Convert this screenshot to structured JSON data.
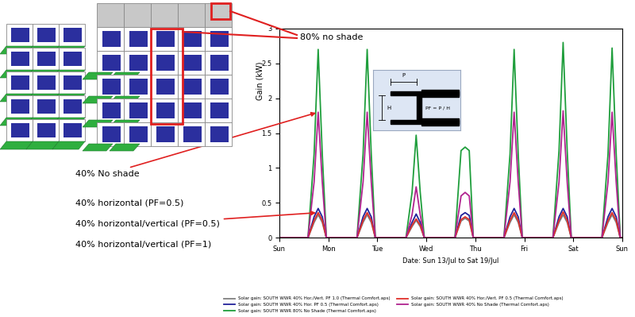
{
  "chart_data": {
    "type": "line",
    "x_label": "Date: Sun 13/Jul to Sat 19/Jul",
    "y_label": "Gain (kW)",
    "x": [
      0,
      14,
      17,
      19,
      21,
      23,
      38,
      41,
      43,
      45,
      47,
      62,
      65,
      67,
      69,
      71,
      86,
      89,
      91,
      93,
      95,
      110,
      113,
      115,
      117,
      119,
      134,
      137,
      139,
      141,
      143,
      158,
      161,
      163,
      165,
      167,
      168
    ],
    "xlim": [
      0,
      168
    ],
    "xticks": [
      {
        "value": 0,
        "label": "Sun"
      },
      {
        "value": 24,
        "label": "Mon"
      },
      {
        "value": 48,
        "label": "Tue"
      },
      {
        "value": 72,
        "label": "Wed"
      },
      {
        "value": 96,
        "label": "Thu"
      },
      {
        "value": 120,
        "label": "Fri"
      },
      {
        "value": 144,
        "label": "Sat"
      },
      {
        "value": 168,
        "label": "Sun"
      }
    ],
    "ylim": [
      0,
      3
    ],
    "yticks": [
      0,
      0.5,
      1,
      1.5,
      2,
      2.5,
      3
    ],
    "grid": false,
    "legend": "lower center",
    "series": [
      {
        "name": "Solar gain: SOUTH WWR 40% Hor./Vert. PF 1.0 (Thermal Comfort.aps)",
        "color": "#808080",
        "values": [
          0,
          0,
          0.22,
          0.33,
          0.22,
          0,
          0,
          0.22,
          0.33,
          0.22,
          0,
          0,
          0.16,
          0.25,
          0.16,
          0,
          0,
          0.24,
          0.28,
          0.24,
          0,
          0,
          0.22,
          0.33,
          0.22,
          0,
          0,
          0.22,
          0.33,
          0.22,
          0,
          0,
          0.22,
          0.33,
          0.22,
          0,
          0
        ]
      },
      {
        "name": "Solar gain: SOUTH WWR 40% Hor. PF 0.5 (Thermal Comfort.aps)",
        "color": "#23239a",
        "values": [
          0,
          0,
          0.3,
          0.42,
          0.3,
          0,
          0,
          0.3,
          0.42,
          0.3,
          0,
          0,
          0.22,
          0.34,
          0.22,
          0,
          0,
          0.32,
          0.36,
          0.32,
          0,
          0,
          0.3,
          0.42,
          0.3,
          0,
          0,
          0.3,
          0.42,
          0.3,
          0,
          0,
          0.3,
          0.42,
          0.3,
          0,
          0
        ]
      },
      {
        "name": "Solar gain: SOUTH WWR 80% No Shade (Thermal Comfort.aps)",
        "color": "#1f9e3c",
        "values": [
          0,
          0,
          1.2,
          2.7,
          1.2,
          0,
          0,
          1.2,
          2.7,
          1.2,
          0,
          0,
          0.65,
          1.47,
          0.65,
          0,
          0,
          1.25,
          1.3,
          1.25,
          0,
          0,
          1.2,
          2.7,
          1.2,
          0,
          0,
          1.25,
          2.8,
          1.25,
          0,
          0,
          1.2,
          2.72,
          1.2,
          0,
          0
        ]
      },
      {
        "name": "Solar gain: SOUTH WWR 40% Hor./Vert. PF 0.5 (Thermal Comfort.aps)",
        "color": "#e0302a",
        "values": [
          0,
          0,
          0.25,
          0.36,
          0.25,
          0,
          0,
          0.25,
          0.36,
          0.25,
          0,
          0,
          0.18,
          0.27,
          0.18,
          0,
          0,
          0.26,
          0.3,
          0.26,
          0,
          0,
          0.25,
          0.36,
          0.25,
          0,
          0,
          0.25,
          0.37,
          0.25,
          0,
          0,
          0.25,
          0.36,
          0.25,
          0,
          0
        ]
      },
      {
        "name": "Solar gain: SOUTH WWR 40% No Shade (Thermal Comfort.aps)",
        "color": "#b0238f",
        "values": [
          0,
          0,
          0.8,
          1.8,
          0.8,
          0,
          0,
          0.8,
          1.8,
          0.8,
          0,
          0,
          0.33,
          0.73,
          0.33,
          0,
          0,
          0.6,
          0.65,
          0.6,
          0,
          0,
          0.8,
          1.8,
          0.8,
          0,
          0,
          0.8,
          1.82,
          0.8,
          0,
          0,
          0.8,
          1.8,
          0.8,
          0,
          0
        ]
      }
    ],
    "annotations": [
      "80% no shade",
      "40% No shade",
      "40% horizontal (PF=0.5)",
      "40% horizontal/vertical (PF=0.5)",
      "40% horizontal/vertical (PF=1)"
    ]
  },
  "diagram_labels": {
    "p": "P",
    "h": "H",
    "formula": "PF = P / H"
  }
}
